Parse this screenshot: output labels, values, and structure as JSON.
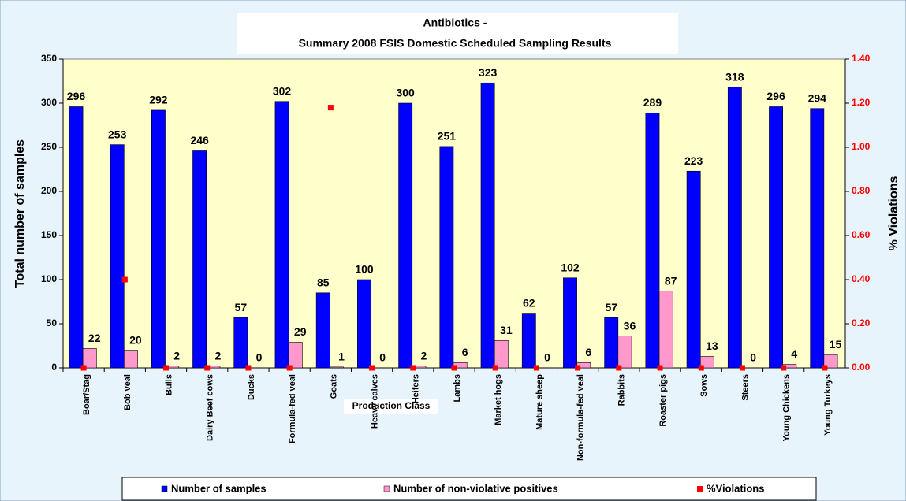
{
  "chart_data": {
    "type": "bar",
    "title": "Antibiotics -",
    "subtitle": "Summary 2008 FSIS Domestic Scheduled Sampling Results",
    "x_label": "Production Class",
    "y_label": "Total number of samples",
    "y2_label": "% Violations",
    "categories": [
      "Boar/Stag",
      "Bob veal",
      "Bulls",
      "Dairy Beef cows",
      "Ducks",
      "Formula-fed veal",
      "Goats",
      "Heavy calves",
      "Heifers",
      "Lambs",
      "Market hogs",
      "Mature sheep",
      "Non-formula-fed veal",
      "Rabbits",
      "Roaster pigs",
      "Sows",
      "Steers",
      "Young Chickens",
      "Young Turkeys"
    ],
    "series": [
      {
        "name": "Number of samples",
        "color": "#0000ff",
        "values": [
          296,
          253,
          292,
          246,
          57,
          302,
          85,
          100,
          300,
          251,
          323,
          62,
          102,
          57,
          289,
          223,
          318,
          296,
          294
        ]
      },
      {
        "name": "Number of non-violative positives",
        "color": "#ff99cc",
        "values": [
          22,
          20,
          2,
          2,
          0,
          29,
          1,
          0,
          2,
          6,
          31,
          0,
          6,
          36,
          87,
          13,
          0,
          4,
          15
        ]
      },
      {
        "name": "%Violations",
        "color": "#ff0000",
        "axis": "y2",
        "values": [
          0,
          0.4,
          0,
          0,
          0,
          0,
          1.18,
          0,
          0,
          0,
          0,
          0,
          0,
          0,
          0,
          0,
          0,
          0,
          0
        ]
      }
    ],
    "ylim": [
      0,
      350
    ],
    "yticks": [
      0,
      50,
      100,
      150,
      200,
      250,
      300,
      350
    ],
    "y2lim": [
      0,
      1.4
    ],
    "y2ticks": [
      {
        "value": 0,
        "label": "0.00"
      },
      {
        "value": 0.2,
        "label": "0.20"
      },
      {
        "value": 0.4,
        "label": "0.40"
      },
      {
        "value": 0.6,
        "label": "0.60"
      },
      {
        "value": 0.8,
        "label": "0.80"
      },
      {
        "value": 1.0,
        "label": "1.00"
      },
      {
        "value": 1.2,
        "label": "1.20"
      },
      {
        "value": 1.4,
        "label": "1.40"
      }
    ],
    "legend": "bottom"
  }
}
